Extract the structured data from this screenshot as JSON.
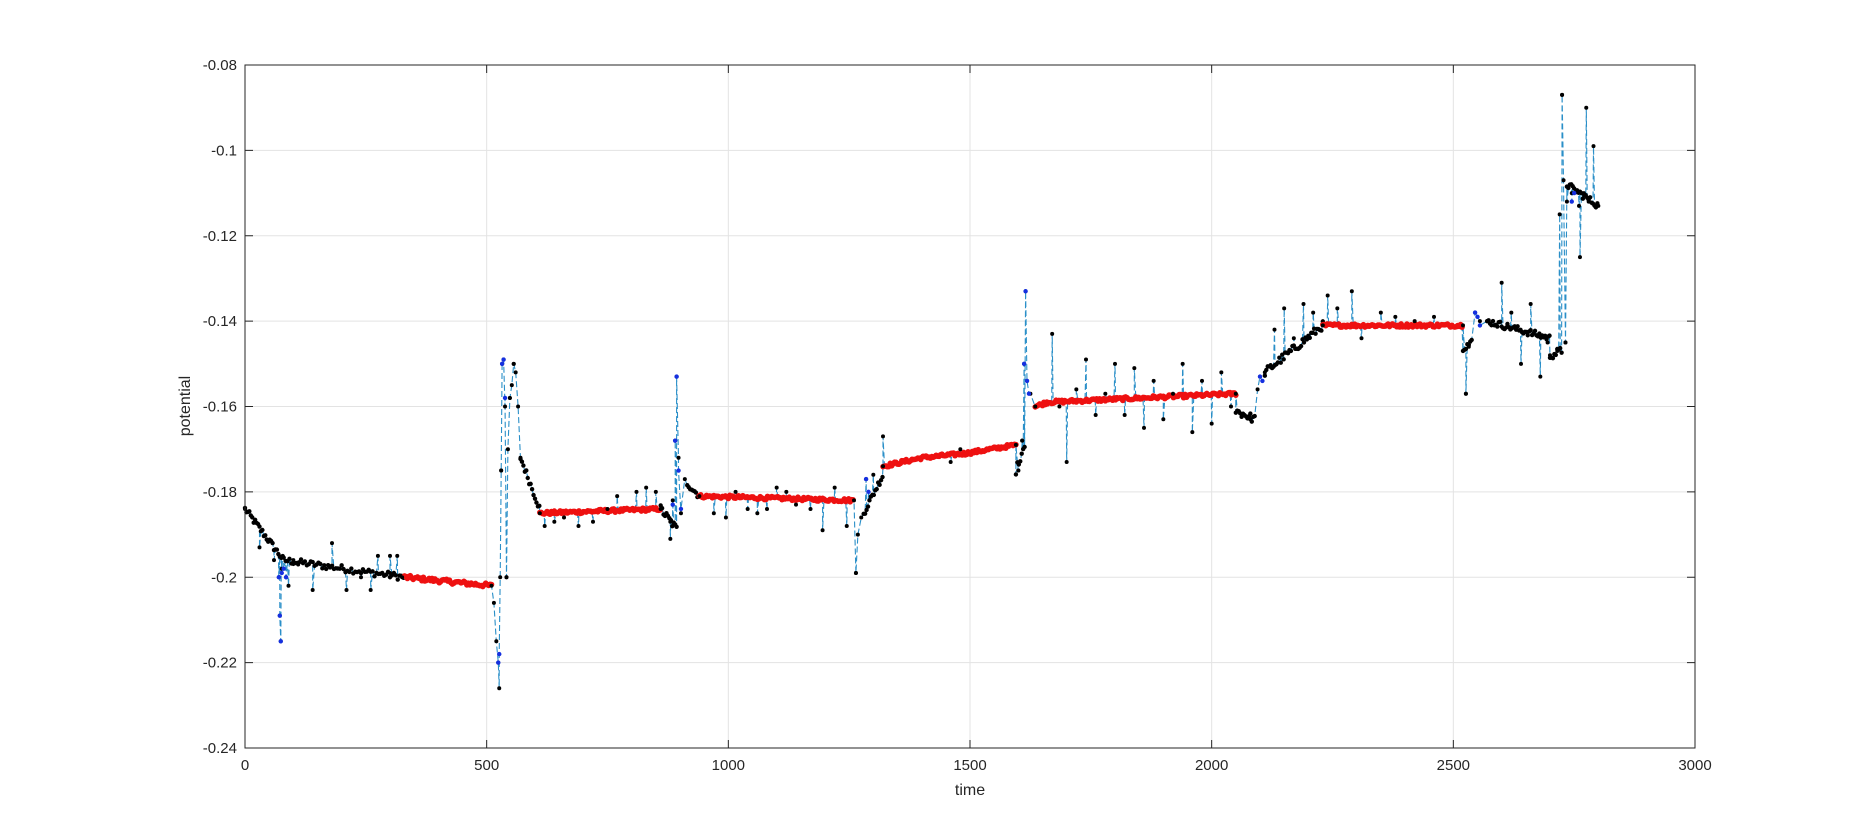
{
  "chart_data": {
    "type": "line",
    "title": "",
    "xlabel": "time",
    "ylabel": "potential",
    "xlim": [
      0,
      3000
    ],
    "ylim": [
      -0.24,
      -0.08
    ],
    "xticks": [
      0,
      500,
      1000,
      1500,
      2000,
      2500,
      3000
    ],
    "xtick_labels": [
      "0",
      "500",
      "1000",
      "1500",
      "2000",
      "2500",
      "3000"
    ],
    "yticks": [
      -0.24,
      -0.22,
      -0.2,
      -0.18,
      -0.16,
      -0.14,
      -0.12,
      -0.1,
      -0.08
    ],
    "ytick_labels": [
      "-0.24",
      "-0.22",
      "-0.2",
      "-0.18",
      "-0.16",
      "-0.14",
      "-0.12",
      "-0.1",
      "-0.08"
    ],
    "grid": true,
    "legend": "none",
    "colors": {
      "line": "#2a8fc8",
      "black_points": "#000000",
      "red_points": "#ee1111",
      "blue_points": "#1530e0",
      "grid": "#e3e3e3",
      "axis": "#262626"
    },
    "line_style": "dashed",
    "segments": [
      {
        "x0": 0,
        "x1": 80,
        "y0": -0.184,
        "y1": -0.196,
        "color": "black",
        "step": 3,
        "jitter": 0.0008
      },
      {
        "x0": 80,
        "x1": 330,
        "y0": -0.196,
        "y1": -0.2,
        "color": "black",
        "step": 4,
        "jitter": 0.0008
      },
      {
        "x0": 330,
        "x1": 510,
        "y0": -0.2,
        "y1": -0.202,
        "color": "red",
        "step": 3,
        "jitter": 0.0005
      },
      {
        "x0": 570,
        "x1": 610,
        "y0": -0.172,
        "y1": -0.184,
        "color": "black",
        "step": 3,
        "jitter": 0.0008
      },
      {
        "x0": 610,
        "x1": 860,
        "y0": -0.185,
        "y1": -0.184,
        "color": "red",
        "step": 3,
        "jitter": 0.0004
      },
      {
        "x0": 860,
        "x1": 895,
        "y0": -0.184,
        "y1": -0.189,
        "color": "black",
        "step": 3,
        "jitter": 0.001
      },
      {
        "x0": 915,
        "x1": 940,
        "y0": -0.178,
        "y1": -0.181,
        "color": "black",
        "step": 3,
        "jitter": 0.0008
      },
      {
        "x0": 940,
        "x1": 1260,
        "y0": -0.181,
        "y1": -0.182,
        "color": "red",
        "step": 3,
        "jitter": 0.0004
      },
      {
        "x0": 1280,
        "x1": 1320,
        "y0": -0.185,
        "y1": -0.176,
        "color": "black",
        "step": 3,
        "jitter": 0.0008
      },
      {
        "x0": 1320,
        "x1": 1400,
        "y0": -0.174,
        "y1": -0.172,
        "color": "red",
        "step": 3,
        "jitter": 0.0004
      },
      {
        "x0": 1400,
        "x1": 1490,
        "y0": -0.172,
        "y1": -0.171,
        "color": "red",
        "step": 3,
        "jitter": 0.0004
      },
      {
        "x0": 1490,
        "x1": 1595,
        "y0": -0.171,
        "y1": -0.169,
        "color": "red",
        "step": 3,
        "jitter": 0.0004
      },
      {
        "x0": 1595,
        "x1": 1615,
        "y0": -0.175,
        "y1": -0.168,
        "color": "black",
        "step": 3,
        "jitter": 0.001
      },
      {
        "x0": 1635,
        "x1": 1660,
        "y0": -0.16,
        "y1": -0.159,
        "color": "red",
        "step": 3,
        "jitter": 0.0004
      },
      {
        "x0": 1660,
        "x1": 2050,
        "y0": -0.159,
        "y1": -0.157,
        "color": "red",
        "step": 3,
        "jitter": 0.0004
      },
      {
        "x0": 2050,
        "x1": 2090,
        "y0": -0.161,
        "y1": -0.163,
        "color": "black",
        "step": 3,
        "jitter": 0.001
      },
      {
        "x0": 2110,
        "x1": 2230,
        "y0": -0.152,
        "y1": -0.141,
        "color": "black",
        "step": 3,
        "jitter": 0.001
      },
      {
        "x0": 2230,
        "x1": 2520,
        "y0": -0.141,
        "y1": -0.141,
        "color": "red",
        "step": 3,
        "jitter": 0.0004
      },
      {
        "x0": 2520,
        "x1": 2540,
        "y0": -0.146,
        "y1": -0.145,
        "color": "black",
        "step": 3,
        "jitter": 0.001
      },
      {
        "x0": 2570,
        "x1": 2700,
        "y0": -0.14,
        "y1": -0.144,
        "color": "black",
        "step": 3,
        "jitter": 0.0008
      },
      {
        "x0": 2700,
        "x1": 2725,
        "y0": -0.148,
        "y1": -0.147,
        "color": "black",
        "step": 3,
        "jitter": 0.001
      },
      {
        "x0": 2735,
        "x1": 2800,
        "y0": -0.108,
        "y1": -0.113,
        "color": "black",
        "step": 3,
        "jitter": 0.0008
      }
    ],
    "path_points": [
      [
        0,
        -0.184
      ],
      [
        30,
        -0.193
      ],
      [
        60,
        -0.196
      ],
      [
        70,
        -0.2
      ],
      [
        72,
        -0.209
      ],
      [
        74,
        -0.215
      ],
      [
        76,
        -0.198
      ],
      [
        85,
        -0.2
      ],
      [
        100,
        -0.196
      ],
      [
        300,
        -0.199
      ],
      [
        510,
        -0.202
      ],
      [
        515,
        -0.206
      ],
      [
        520,
        -0.215
      ],
      [
        524,
        -0.22
      ],
      [
        526,
        -0.226
      ],
      [
        528,
        -0.2
      ],
      [
        530,
        -0.175
      ],
      [
        532,
        -0.15
      ],
      [
        535,
        -0.149
      ],
      [
        538,
        -0.16
      ],
      [
        541,
        -0.2
      ],
      [
        544,
        -0.17
      ],
      [
        548,
        -0.158
      ],
      [
        552,
        -0.155
      ],
      [
        556,
        -0.15
      ],
      [
        560,
        -0.152
      ],
      [
        565,
        -0.16
      ],
      [
        570,
        -0.172
      ],
      [
        610,
        -0.185
      ],
      [
        860,
        -0.184
      ],
      [
        880,
        -0.187
      ],
      [
        885,
        -0.182
      ],
      [
        890,
        -0.168
      ],
      [
        893,
        -0.153
      ],
      [
        897,
        -0.172
      ],
      [
        902,
        -0.185
      ],
      [
        910,
        -0.177
      ],
      [
        940,
        -0.181
      ],
      [
        1260,
        -0.182
      ],
      [
        1264,
        -0.199
      ],
      [
        1268,
        -0.19
      ],
      [
        1275,
        -0.186
      ],
      [
        1285,
        -0.177
      ],
      [
        1300,
        -0.176
      ],
      [
        1320,
        -0.174
      ],
      [
        1595,
        -0.169
      ],
      [
        1600,
        -0.175
      ],
      [
        1608,
        -0.168
      ],
      [
        1612,
        -0.15
      ],
      [
        1615,
        -0.133
      ],
      [
        1618,
        -0.154
      ],
      [
        1625,
        -0.157
      ],
      [
        1635,
        -0.16
      ],
      [
        2050,
        -0.157
      ],
      [
        2080,
        -0.163
      ],
      [
        2095,
        -0.156
      ],
      [
        2100,
        -0.153
      ],
      [
        2110,
        -0.152
      ],
      [
        2230,
        -0.141
      ],
      [
        2520,
        -0.141
      ],
      [
        2526,
        -0.157
      ],
      [
        2532,
        -0.146
      ],
      [
        2545,
        -0.138
      ],
      [
        2555,
        -0.14
      ],
      [
        2570,
        -0.14
      ],
      [
        2700,
        -0.148
      ],
      [
        2715,
        -0.147
      ],
      [
        2720,
        -0.115
      ],
      [
        2725,
        -0.087
      ],
      [
        2728,
        -0.107
      ],
      [
        2732,
        -0.145
      ],
      [
        2735,
        -0.112
      ],
      [
        2745,
        -0.11
      ],
      [
        2760,
        -0.113
      ],
      [
        2770,
        -0.11
      ],
      [
        2780,
        -0.112
      ],
      [
        2800,
        -0.113
      ]
    ],
    "blue_points": [
      [
        70,
        -0.2
      ],
      [
        72,
        -0.209
      ],
      [
        74,
        -0.215
      ],
      [
        76,
        -0.199
      ],
      [
        80,
        -0.198
      ],
      [
        85,
        -0.2
      ],
      [
        524,
        -0.22
      ],
      [
        526,
        -0.218
      ],
      [
        532,
        -0.15
      ],
      [
        535,
        -0.149
      ],
      [
        538,
        -0.158
      ],
      [
        885,
        -0.183
      ],
      [
        890,
        -0.168
      ],
      [
        893,
        -0.153
      ],
      [
        897,
        -0.175
      ],
      [
        902,
        -0.184
      ],
      [
        1285,
        -0.177
      ],
      [
        1290,
        -0.18
      ],
      [
        1612,
        -0.15
      ],
      [
        1615,
        -0.133
      ],
      [
        1618,
        -0.154
      ],
      [
        1622,
        -0.157
      ],
      [
        2100,
        -0.153
      ],
      [
        2105,
        -0.154
      ],
      [
        2545,
        -0.138
      ],
      [
        2550,
        -0.139
      ],
      [
        2555,
        -0.141
      ],
      [
        2745,
        -0.112
      ],
      [
        2750,
        -0.11
      ]
    ],
    "black_outliers": [
      [
        90,
        -0.202
      ],
      [
        110,
        -0.197
      ],
      [
        140,
        -0.203
      ],
      [
        180,
        -0.192
      ],
      [
        210,
        -0.203
      ],
      [
        240,
        -0.2
      ],
      [
        260,
        -0.203
      ],
      [
        275,
        -0.195
      ],
      [
        300,
        -0.195
      ],
      [
        315,
        -0.195
      ],
      [
        325,
        -0.2
      ],
      [
        530,
        -0.175
      ],
      [
        541,
        -0.2
      ],
      [
        548,
        -0.158
      ],
      [
        556,
        -0.15
      ],
      [
        620,
        -0.188
      ],
      [
        640,
        -0.187
      ],
      [
        660,
        -0.186
      ],
      [
        690,
        -0.188
      ],
      [
        720,
        -0.187
      ],
      [
        750,
        -0.184
      ],
      [
        770,
        -0.181
      ],
      [
        810,
        -0.18
      ],
      [
        830,
        -0.179
      ],
      [
        850,
        -0.18
      ],
      [
        880,
        -0.191
      ],
      [
        970,
        -0.185
      ],
      [
        995,
        -0.186
      ],
      [
        1015,
        -0.18
      ],
      [
        1040,
        -0.184
      ],
      [
        1060,
        -0.185
      ],
      [
        1080,
        -0.184
      ],
      [
        1100,
        -0.179
      ],
      [
        1120,
        -0.18
      ],
      [
        1140,
        -0.183
      ],
      [
        1170,
        -0.184
      ],
      [
        1195,
        -0.189
      ],
      [
        1220,
        -0.179
      ],
      [
        1245,
        -0.188
      ],
      [
        1264,
        -0.199
      ],
      [
        1320,
        -0.167
      ],
      [
        1460,
        -0.173
      ],
      [
        1480,
        -0.17
      ],
      [
        1600,
        -0.175
      ],
      [
        1608,
        -0.168
      ],
      [
        1670,
        -0.143
      ],
      [
        1685,
        -0.16
      ],
      [
        1700,
        -0.173
      ],
      [
        1720,
        -0.156
      ],
      [
        1740,
        -0.149
      ],
      [
        1760,
        -0.162
      ],
      [
        1780,
        -0.157
      ],
      [
        1800,
        -0.15
      ],
      [
        1820,
        -0.162
      ],
      [
        1840,
        -0.151
      ],
      [
        1860,
        -0.165
      ],
      [
        1880,
        -0.154
      ],
      [
        1900,
        -0.163
      ],
      [
        1920,
        -0.157
      ],
      [
        1940,
        -0.15
      ],
      [
        1960,
        -0.166
      ],
      [
        1980,
        -0.154
      ],
      [
        2000,
        -0.164
      ],
      [
        2020,
        -0.152
      ],
      [
        2040,
        -0.16
      ],
      [
        2080,
        -0.163
      ],
      [
        2130,
        -0.142
      ],
      [
        2150,
        -0.137
      ],
      [
        2170,
        -0.144
      ],
      [
        2190,
        -0.136
      ],
      [
        2210,
        -0.138
      ],
      [
        2240,
        -0.134
      ],
      [
        2260,
        -0.137
      ],
      [
        2290,
        -0.133
      ],
      [
        2310,
        -0.144
      ],
      [
        2350,
        -0.138
      ],
      [
        2380,
        -0.139
      ],
      [
        2420,
        -0.14
      ],
      [
        2460,
        -0.139
      ],
      [
        2526,
        -0.157
      ],
      [
        2600,
        -0.131
      ],
      [
        2620,
        -0.138
      ],
      [
        2640,
        -0.15
      ],
      [
        2660,
        -0.136
      ],
      [
        2680,
        -0.153
      ],
      [
        2695,
        -0.145
      ],
      [
        2725,
        -0.087
      ],
      [
        2732,
        -0.145
      ],
      [
        2762,
        -0.125
      ],
      [
        2775,
        -0.09
      ],
      [
        2790,
        -0.099
      ]
    ]
  }
}
